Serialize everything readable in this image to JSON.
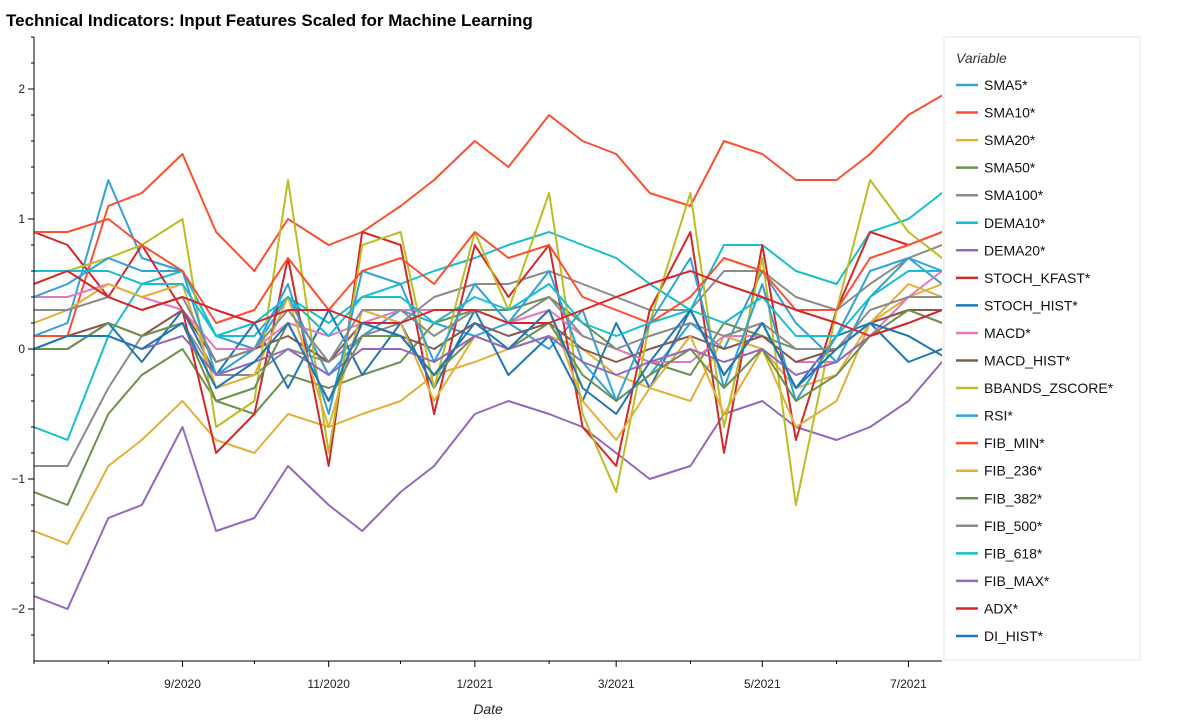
{
  "chart_data": {
    "type": "line",
    "title": "Technical Indicators: Input Features Scaled for Machine Learning",
    "xlabel": "Date",
    "ylabel": "",
    "legend_title": "Variable",
    "legend_position": "right",
    "grid": false,
    "x_ticks": [
      "9/2020",
      "11/2020",
      "1/2021",
      "3/2021",
      "5/2021",
      "7/2021"
    ],
    "y_ticks": [
      -2,
      -1,
      0,
      1,
      2
    ],
    "xlim": [
      "2020-07-01",
      "2021-07-15"
    ],
    "ylim": [
      -2.4,
      2.4
    ],
    "x": [
      "2020-07-01",
      "2020-07-15",
      "2020-08-01",
      "2020-08-15",
      "2020-09-01",
      "2020-09-15",
      "2020-10-01",
      "2020-10-15",
      "2020-11-01",
      "2020-11-15",
      "2020-12-01",
      "2020-12-15",
      "2021-01-01",
      "2021-01-15",
      "2021-02-01",
      "2021-02-15",
      "2021-03-01",
      "2021-03-15",
      "2021-04-01",
      "2021-04-15",
      "2021-05-01",
      "2021-05-15",
      "2021-06-01",
      "2021-06-15",
      "2021-07-01",
      "2021-07-15"
    ],
    "series": [
      {
        "name": "SMA5*",
        "color": "#30a2da",
        "values": [
          0.1,
          0.2,
          1.3,
          0.7,
          0.6,
          0.1,
          0.0,
          0.4,
          -0.2,
          0.1,
          0.3,
          0.2,
          0.1,
          0.2,
          0.0,
          0.3,
          -0.4,
          -0.2,
          0.2,
          0.0,
          0.6,
          0.2,
          -0.1,
          0.4,
          0.7,
          0.5
        ]
      },
      {
        "name": "SMA10*",
        "color": "#fc4f30",
        "values": [
          0.1,
          0.1,
          1.1,
          1.2,
          1.5,
          0.9,
          0.6,
          1.0,
          0.8,
          0.9,
          1.1,
          1.3,
          1.6,
          1.4,
          1.8,
          1.6,
          1.5,
          1.2,
          1.1,
          1.6,
          1.5,
          1.3,
          1.3,
          1.5,
          1.8,
          1.95
        ]
      },
      {
        "name": "SMA20*",
        "color": "#e5ae38",
        "values": [
          -1.4,
          -1.5,
          -0.9,
          -0.7,
          -0.4,
          -0.7,
          -0.8,
          -0.5,
          -0.6,
          -0.5,
          -0.4,
          -0.2,
          -0.1,
          0.0,
          0.1,
          0.0,
          -0.2,
          -0.3,
          -0.4,
          0.1,
          0.0,
          -0.3,
          -0.2,
          0.2,
          0.4,
          0.5
        ]
      },
      {
        "name": "SMA50*",
        "color": "#6d904f",
        "values": [
          -1.1,
          -1.2,
          -0.5,
          -0.2,
          0.0,
          -0.4,
          -0.5,
          -0.2,
          -0.3,
          -0.2,
          -0.1,
          0.2,
          0.3,
          0.3,
          0.4,
          0.2,
          0.0,
          -0.1,
          -0.2,
          0.2,
          0.1,
          0.0,
          0.0,
          0.2,
          0.3,
          0.2
        ]
      },
      {
        "name": "SMA100*",
        "color": "#8b8b8b",
        "values": [
          -0.9,
          -0.9,
          -0.3,
          0.1,
          0.2,
          -0.2,
          -0.2,
          0.0,
          -0.1,
          0.1,
          0.2,
          0.4,
          0.5,
          0.5,
          0.6,
          0.5,
          0.4,
          0.3,
          0.3,
          0.6,
          0.6,
          0.4,
          0.3,
          0.5,
          0.7,
          0.8
        ]
      },
      {
        "name": "DEMA10*",
        "color": "#17becf",
        "values": [
          -0.6,
          -0.7,
          0.1,
          0.5,
          0.6,
          0.1,
          0.1,
          0.4,
          0.2,
          0.4,
          0.5,
          0.6,
          0.7,
          0.8,
          0.9,
          0.8,
          0.7,
          0.5,
          0.3,
          0.8,
          0.8,
          0.6,
          0.5,
          0.9,
          1.0,
          1.2
        ]
      },
      {
        "name": "DEMA20*",
        "color": "#9467bd",
        "values": [
          -1.9,
          -2.0,
          -1.3,
          -1.2,
          -0.6,
          -1.4,
          -1.3,
          -0.9,
          -1.2,
          -1.4,
          -1.1,
          -0.9,
          -0.5,
          -0.4,
          -0.5,
          -0.6,
          -0.8,
          -1.0,
          -0.9,
          -0.5,
          -0.4,
          -0.6,
          -0.7,
          -0.6,
          -0.4,
          -0.1
        ]
      },
      {
        "name": "STOCH_KFAST*",
        "color": "#d62728",
        "values": [
          0.9,
          0.8,
          0.4,
          0.8,
          0.3,
          -0.8,
          -0.5,
          0.7,
          -0.9,
          0.9,
          0.8,
          -0.5,
          0.8,
          0.4,
          0.8,
          -0.6,
          -0.9,
          0.3,
          0.9,
          -0.8,
          0.8,
          -0.7,
          0.3,
          0.9,
          0.8,
          0.9
        ]
      },
      {
        "name": "STOCH_HIST*",
        "color": "#1f77b4",
        "values": [
          0.0,
          0.0,
          0.2,
          -0.1,
          0.3,
          -0.2,
          0.2,
          -0.3,
          0.3,
          -0.2,
          0.2,
          -0.3,
          0.3,
          -0.2,
          0.1,
          -0.4,
          0.2,
          -0.3,
          0.3,
          -0.2,
          0.2,
          -0.3,
          0.1,
          0.2,
          -0.1,
          0.0
        ]
      },
      {
        "name": "MACD*",
        "color": "#e377c2",
        "values": [
          0.4,
          0.4,
          0.5,
          0.4,
          0.3,
          0.0,
          0.0,
          0.2,
          0.1,
          0.2,
          0.3,
          0.3,
          0.3,
          0.2,
          0.3,
          0.1,
          0.0,
          -0.1,
          -0.1,
          0.1,
          0.1,
          -0.1,
          -0.1,
          0.1,
          0.4,
          0.6
        ]
      },
      {
        "name": "MACD_HIST*",
        "color": "#8c564b",
        "values": [
          0.0,
          0.1,
          0.2,
          0.1,
          0.3,
          -0.1,
          0.0,
          0.1,
          -0.1,
          0.2,
          0.1,
          0.0,
          0.2,
          0.1,
          0.2,
          0.0,
          -0.1,
          0.0,
          0.1,
          0.0,
          0.1,
          -0.1,
          0.0,
          0.2,
          0.3,
          0.3
        ]
      },
      {
        "name": "BBANDS_ZSCORE*",
        "color": "#bcbd22",
        "values": [
          0.5,
          0.6,
          0.7,
          0.8,
          1.0,
          -0.6,
          -0.4,
          1.3,
          -0.8,
          0.8,
          0.9,
          -0.3,
          0.9,
          0.3,
          1.2,
          -0.5,
          -1.1,
          0.2,
          1.2,
          -0.6,
          0.7,
          -1.2,
          0.3,
          1.3,
          0.9,
          0.7
        ]
      },
      {
        "name": "RSI*",
        "color": "#30a2da",
        "values": [
          0.4,
          0.5,
          0.7,
          0.6,
          0.6,
          -0.2,
          0.0,
          0.5,
          -0.5,
          0.6,
          0.5,
          -0.1,
          0.5,
          0.2,
          0.6,
          -0.1,
          -0.4,
          0.2,
          0.7,
          -0.3,
          0.5,
          -0.4,
          0.1,
          0.6,
          0.7,
          0.6
        ]
      },
      {
        "name": "FIB_MIN*",
        "color": "#fc4f30",
        "values": [
          0.9,
          0.9,
          1.0,
          0.8,
          0.6,
          0.2,
          0.3,
          0.7,
          0.3,
          0.6,
          0.7,
          0.5,
          0.9,
          0.7,
          0.8,
          0.4,
          0.3,
          0.2,
          0.4,
          0.7,
          0.6,
          0.3,
          0.3,
          0.7,
          0.8,
          0.9
        ]
      },
      {
        "name": "FIB_236*",
        "color": "#e5ae38",
        "values": [
          0.2,
          0.3,
          0.5,
          0.4,
          0.5,
          -0.3,
          -0.2,
          0.4,
          -0.6,
          0.3,
          0.2,
          -0.4,
          0.1,
          0.0,
          0.3,
          -0.4,
          -0.7,
          -0.3,
          0.1,
          -0.5,
          0.0,
          -0.6,
          -0.4,
          0.2,
          0.5,
          0.4
        ]
      },
      {
        "name": "FIB_382*",
        "color": "#6d904f",
        "values": [
          0.0,
          0.0,
          0.2,
          0.1,
          0.2,
          -0.4,
          -0.3,
          0.2,
          -0.4,
          0.1,
          0.1,
          -0.2,
          0.1,
          0.0,
          0.2,
          -0.2,
          -0.4,
          -0.2,
          0.0,
          -0.3,
          0.0,
          -0.4,
          -0.2,
          0.1,
          0.3,
          0.2
        ]
      },
      {
        "name": "FIB_500*",
        "color": "#8b8b8b",
        "values": [
          0.3,
          0.3,
          0.4,
          0.3,
          0.4,
          -0.1,
          0.0,
          0.3,
          -0.1,
          0.3,
          0.3,
          0.1,
          0.3,
          0.2,
          0.4,
          0.1,
          0.0,
          0.1,
          0.2,
          0.1,
          0.2,
          0.0,
          0.0,
          0.3,
          0.4,
          0.4
        ]
      },
      {
        "name": "FIB_618*",
        "color": "#17becf",
        "values": [
          0.6,
          0.6,
          0.6,
          0.5,
          0.5,
          0.1,
          0.2,
          0.4,
          0.1,
          0.4,
          0.4,
          0.2,
          0.4,
          0.3,
          0.5,
          0.2,
          0.1,
          0.2,
          0.3,
          0.2,
          0.4,
          0.1,
          0.1,
          0.4,
          0.6,
          0.6
        ]
      },
      {
        "name": "FIB_MAX*",
        "color": "#9467bd",
        "values": [
          0.0,
          0.1,
          0.1,
          0.0,
          0.1,
          -0.2,
          -0.1,
          0.0,
          -0.2,
          0.0,
          0.0,
          -0.1,
          0.1,
          0.0,
          0.1,
          -0.1,
          -0.2,
          -0.1,
          0.0,
          -0.1,
          0.0,
          -0.2,
          -0.1,
          0.1,
          0.2,
          0.3
        ]
      },
      {
        "name": "ADX*",
        "color": "#d62728",
        "values": [
          0.5,
          0.6,
          0.4,
          0.3,
          0.4,
          0.3,
          0.2,
          0.3,
          0.3,
          0.2,
          0.2,
          0.3,
          0.3,
          0.2,
          0.2,
          0.3,
          0.4,
          0.5,
          0.6,
          0.5,
          0.4,
          0.3,
          0.2,
          0.1,
          0.2,
          0.3
        ]
      },
      {
        "name": "DI_HIST*",
        "color": "#1f77b4",
        "values": [
          0.0,
          0.1,
          0.1,
          0.0,
          0.2,
          -0.3,
          -0.1,
          0.2,
          -0.4,
          0.2,
          0.1,
          -0.2,
          0.2,
          0.0,
          0.3,
          -0.3,
          -0.5,
          -0.1,
          0.3,
          -0.2,
          0.2,
          -0.3,
          0.0,
          0.2,
          0.1,
          -0.05
        ]
      }
    ]
  }
}
